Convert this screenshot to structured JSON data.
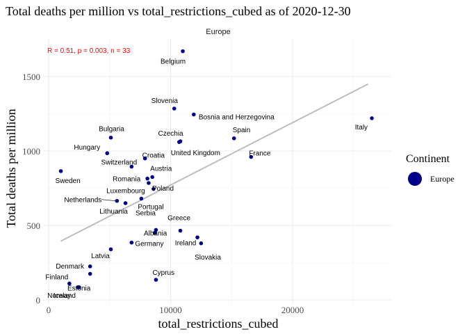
{
  "chart_data": {
    "type": "scatter",
    "title": "Total deaths per million vs total_restrictions_cubed as of 2020-12-30",
    "facet_label": "Europe",
    "xlabel": "total_restrictions_cubed",
    "ylabel": "Total deaths per million",
    "xlim": [
      0,
      27500
    ],
    "ylim": [
      0,
      1700
    ],
    "x_ticks": [
      0,
      10000,
      20000
    ],
    "x_tick_labels": [
      "0",
      "10000",
      "20000"
    ],
    "y_ticks": [
      0,
      500,
      1000,
      1500
    ],
    "y_tick_labels": [
      "0",
      "500",
      "1000",
      "1500"
    ],
    "stats_annotation": "R = 0.51, p = 0.003, n = 33",
    "grid": true,
    "legend": {
      "title": "Continent",
      "position": "right",
      "items": [
        {
          "label": "Europe",
          "color": "#00008B"
        }
      ]
    },
    "point_color": "#00008B",
    "trend_color": "#BDBDBD",
    "annotation_color": "#FF0000",
    "trend_line": {
      "x": [
        1000,
        26200
      ],
      "y": [
        395,
        1450
      ]
    },
    "points": [
      {
        "label": "Belgium",
        "x": 11000,
        "y": 1670
      },
      {
        "label": "Slovenia",
        "x": 10300,
        "y": 1285
      },
      {
        "label": "Bosnia and Herzegovina",
        "x": 11900,
        "y": 1245
      },
      {
        "label": "Italy",
        "x": 26500,
        "y": 1220
      },
      {
        "label": "Spain",
        "x": 15200,
        "y": 1085
      },
      {
        "label": "Bulgaria",
        "x": 5100,
        "y": 1090
      },
      {
        "label": "Czechia",
        "x": 10800,
        "y": 1065
      },
      {
        "label": "United Kingdom",
        "x": 10700,
        "y": 1060
      },
      {
        "label": "Hungary",
        "x": 4800,
        "y": 985
      },
      {
        "label": "France",
        "x": 16600,
        "y": 960
      },
      {
        "label": "Croatia",
        "x": 7900,
        "y": 950
      },
      {
        "label": "Switzerland",
        "x": 6800,
        "y": 895
      },
      {
        "label": "Sweden",
        "x": 1000,
        "y": 865
      },
      {
        "label": "Austria",
        "x": 8500,
        "y": 825
      },
      {
        "label": "Romania",
        "x": 8100,
        "y": 815
      },
      {
        "label": "Poland",
        "x": 8200,
        "y": 785
      },
      {
        "label": "Luxembourg",
        "x": 8600,
        "y": 745
      },
      {
        "label": "Portugal",
        "x": 7600,
        "y": 680
      },
      {
        "label": "Netherlands",
        "x": 5600,
        "y": 665
      },
      {
        "label": "Lithuania",
        "x": 6300,
        "y": 650
      },
      {
        "label": "Serbia",
        "x": 8800,
        "y": 470
      },
      {
        "label": "Greece",
        "x": 10800,
        "y": 465
      },
      {
        "label": "Albania",
        "x": 8700,
        "y": 450
      },
      {
        "label": "Slovakia",
        "x": 12200,
        "y": 420
      },
      {
        "label": "Ireland",
        "x": 12500,
        "y": 380
      },
      {
        "label": "Germany",
        "x": 6800,
        "y": 385
      },
      {
        "label": "Latvia",
        "x": 5100,
        "y": 340
      },
      {
        "label": "Denmark",
        "x": 3400,
        "y": 225
      },
      {
        "label": "Estonia",
        "x": 3400,
        "y": 175
      },
      {
        "label": "Cyprus",
        "x": 8800,
        "y": 135
      },
      {
        "label": "Finland",
        "x": 1700,
        "y": 110
      },
      {
        "label": "Norway",
        "x": 2400,
        "y": 85
      },
      {
        "label": "Iceland",
        "x": 2500,
        "y": 85
      }
    ]
  }
}
